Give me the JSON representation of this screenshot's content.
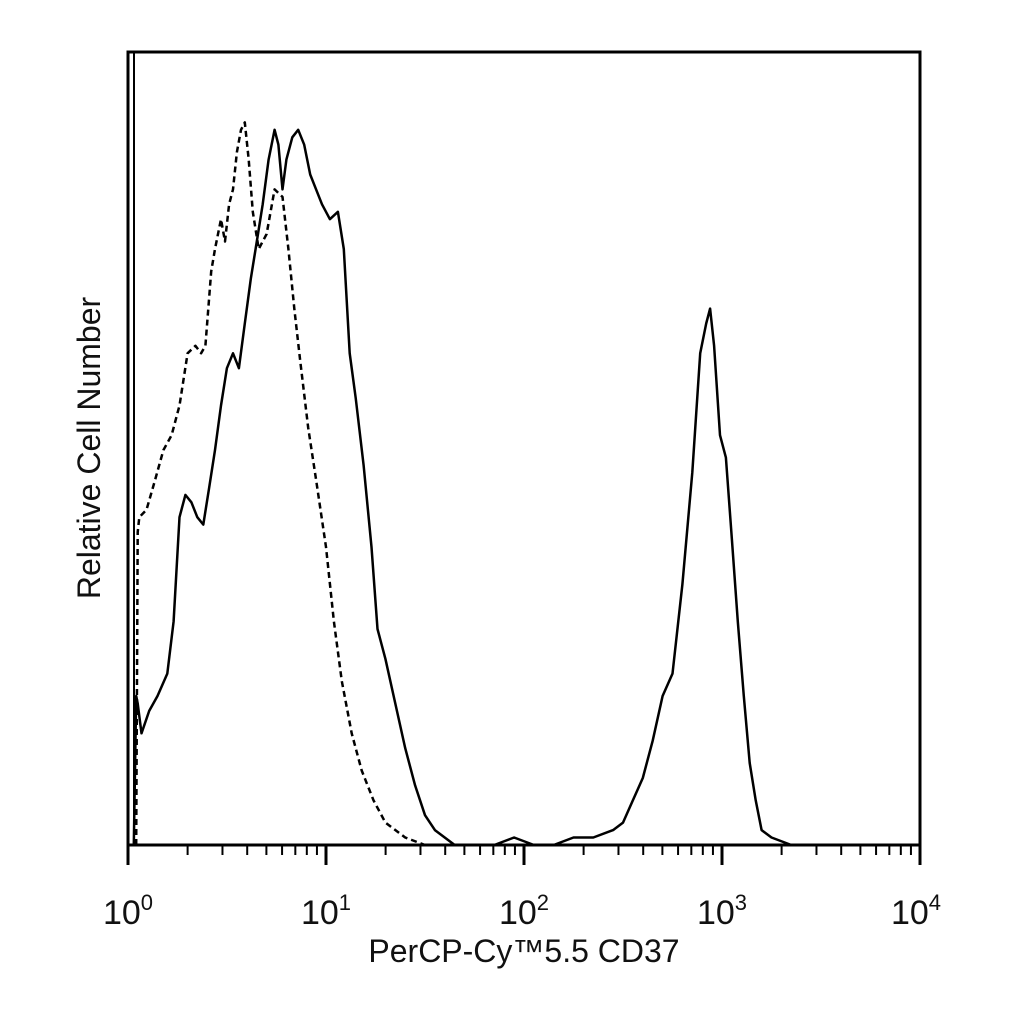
{
  "chart_data": {
    "type": "line",
    "title": "",
    "xlabel": "PerCP-Cy™5.5 CD37",
    "ylabel": "Relative Cell Number",
    "x_scale": "log",
    "xlim": [
      1,
      10000
    ],
    "ylim": [
      0,
      1
    ],
    "x_ticks": [
      {
        "base": "10",
        "exp": "0"
      },
      {
        "base": "10",
        "exp": "1"
      },
      {
        "base": "10",
        "exp": "2"
      },
      {
        "base": "10",
        "exp": "3"
      },
      {
        "base": "10",
        "exp": "4"
      }
    ],
    "grid": false,
    "legend": "none",
    "series": [
      {
        "style": "dashed",
        "color": "#000000",
        "points": [
          [
            1.1,
            0.0
          ],
          [
            1.12,
            0.42
          ],
          [
            1.14,
            0.44
          ],
          [
            1.24,
            0.45
          ],
          [
            1.37,
            0.49
          ],
          [
            1.51,
            0.53
          ],
          [
            1.66,
            0.55
          ],
          [
            1.82,
            0.59
          ],
          [
            2.0,
            0.66
          ],
          [
            2.19,
            0.67
          ],
          [
            2.34,
            0.66
          ],
          [
            2.46,
            0.67
          ],
          [
            2.63,
            0.77
          ],
          [
            2.75,
            0.8
          ],
          [
            2.95,
            0.84
          ],
          [
            3.09,
            0.81
          ],
          [
            3.24,
            0.86
          ],
          [
            3.39,
            0.88
          ],
          [
            3.55,
            0.93
          ],
          [
            3.72,
            0.96
          ],
          [
            3.89,
            0.97
          ],
          [
            4.07,
            0.92
          ],
          [
            4.27,
            0.85
          ],
          [
            4.57,
            0.8
          ],
          [
            5.01,
            0.82
          ],
          [
            5.5,
            0.88
          ],
          [
            6.03,
            0.87
          ],
          [
            6.46,
            0.8
          ],
          [
            6.92,
            0.72
          ],
          [
            7.41,
            0.65
          ],
          [
            8.13,
            0.56
          ],
          [
            8.91,
            0.49
          ],
          [
            10.0,
            0.4
          ],
          [
            10.96,
            0.3
          ],
          [
            12.02,
            0.22
          ],
          [
            13.49,
            0.15
          ],
          [
            15.14,
            0.1
          ],
          [
            17.38,
            0.06
          ],
          [
            19.95,
            0.03
          ],
          [
            25.12,
            0.01
          ],
          [
            31.62,
            0.0
          ],
          [
            63.1,
            0.0
          ],
          [
            158.5,
            0.0
          ],
          [
            1000,
            0.0
          ],
          [
            3981,
            0.0
          ],
          [
            10000,
            0.0
          ]
        ]
      },
      {
        "style": "solid",
        "color": "#000000",
        "points": [
          [
            1.07,
            0.0
          ],
          [
            1.1,
            0.2
          ],
          [
            1.12,
            0.19
          ],
          [
            1.17,
            0.15
          ],
          [
            1.28,
            0.18
          ],
          [
            1.41,
            0.2
          ],
          [
            1.58,
            0.23
          ],
          [
            1.7,
            0.3
          ],
          [
            1.82,
            0.44
          ],
          [
            1.95,
            0.47
          ],
          [
            2.09,
            0.46
          ],
          [
            2.24,
            0.44
          ],
          [
            2.4,
            0.43
          ],
          [
            2.57,
            0.48
          ],
          [
            2.75,
            0.53
          ],
          [
            2.95,
            0.59
          ],
          [
            3.16,
            0.64
          ],
          [
            3.39,
            0.66
          ],
          [
            3.63,
            0.64
          ],
          [
            3.89,
            0.7
          ],
          [
            4.17,
            0.76
          ],
          [
            4.47,
            0.81
          ],
          [
            4.79,
            0.86
          ],
          [
            5.13,
            0.92
          ],
          [
            5.5,
            0.96
          ],
          [
            5.75,
            0.94
          ],
          [
            6.03,
            0.88
          ],
          [
            6.31,
            0.92
          ],
          [
            6.76,
            0.95
          ],
          [
            7.24,
            0.96
          ],
          [
            7.76,
            0.94
          ],
          [
            8.32,
            0.9
          ],
          [
            8.91,
            0.88
          ],
          [
            9.55,
            0.86
          ],
          [
            10.47,
            0.84
          ],
          [
            11.48,
            0.85
          ],
          [
            12.3,
            0.8
          ],
          [
            13.18,
            0.66
          ],
          [
            14.13,
            0.6
          ],
          [
            15.49,
            0.51
          ],
          [
            16.98,
            0.4
          ],
          [
            18.2,
            0.29
          ],
          [
            19.95,
            0.25
          ],
          [
            22.39,
            0.19
          ],
          [
            25.12,
            0.13
          ],
          [
            28.18,
            0.08
          ],
          [
            31.62,
            0.04
          ],
          [
            35.48,
            0.02
          ],
          [
            44.67,
            0.0
          ],
          [
            70.79,
            0.0
          ],
          [
            89.13,
            0.01
          ],
          [
            112.2,
            0.0
          ],
          [
            141.3,
            0.0
          ],
          [
            177.8,
            0.01
          ],
          [
            223.9,
            0.01
          ],
          [
            281.8,
            0.02
          ],
          [
            316.2,
            0.03
          ],
          [
            354.8,
            0.06
          ],
          [
            398.1,
            0.09
          ],
          [
            446.7,
            0.14
          ],
          [
            501.2,
            0.2
          ],
          [
            562.3,
            0.23
          ],
          [
            631.0,
            0.35
          ],
          [
            707.9,
            0.5
          ],
          [
            776.2,
            0.66
          ],
          [
            831.8,
            0.7
          ],
          [
            870.9,
            0.72
          ],
          [
            912.0,
            0.67
          ],
          [
            977.2,
            0.55
          ],
          [
            1047,
            0.52
          ],
          [
            1122,
            0.41
          ],
          [
            1202,
            0.3
          ],
          [
            1288,
            0.2
          ],
          [
            1380,
            0.11
          ],
          [
            1479,
            0.06
          ],
          [
            1585,
            0.02
          ],
          [
            1778,
            0.01
          ],
          [
            2239,
            0.0
          ],
          [
            3981,
            0.0
          ],
          [
            10000,
            0.0
          ]
        ]
      }
    ]
  }
}
